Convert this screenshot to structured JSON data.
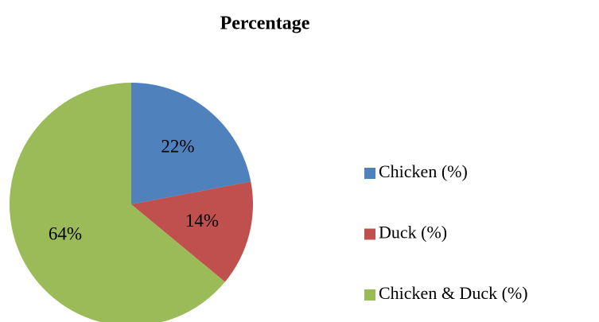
{
  "chart_data": {
    "type": "pie",
    "title": "Percentage",
    "categories": [
      "Chicken (%)",
      "Duck (%)",
      "Chicken & Duck (%)"
    ],
    "values": [
      22,
      14,
      64
    ],
    "value_labels": [
      "22%",
      "14%",
      "64%"
    ],
    "colors": [
      "#4f81bd",
      "#c0504d",
      "#9bbb59"
    ],
    "legend": "right"
  }
}
